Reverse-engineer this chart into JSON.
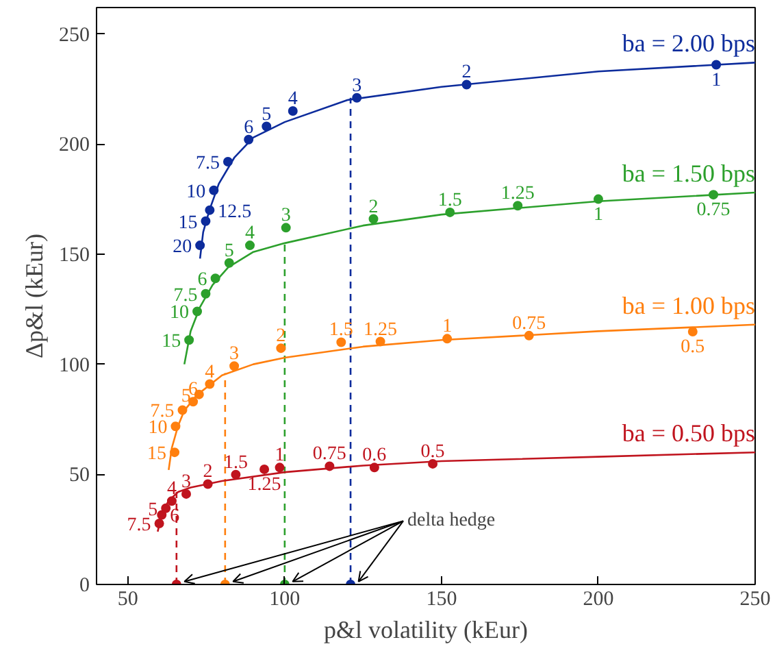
{
  "chart_data": {
    "type": "scatter",
    "xlabel": "p&l volatility (kEur)",
    "ylabel": "Δp&l (kEur)",
    "xlim": [
      40,
      250
    ],
    "ylim": [
      0,
      262
    ],
    "xticks": [
      50,
      100,
      150,
      200,
      250
    ],
    "yticks": [
      0,
      50,
      100,
      150,
      200,
      250
    ],
    "grid": false,
    "legend": false,
    "marker": "circle",
    "annotations": [
      {
        "text": "delta hedge",
        "x": 121,
        "y": 0
      },
      {
        "text": "20",
        "x": 73,
        "y": 154
      },
      {
        "text": "15",
        "x": 74.8,
        "y": 165
      },
      {
        "text": "12.5",
        "x": 76.1,
        "y": 170
      },
      {
        "text": "10",
        "x": 77.4,
        "y": 179
      },
      {
        "text": "7.5",
        "x": 81.9,
        "y": 192
      },
      {
        "text": "6",
        "x": 88.5,
        "y": 202
      },
      {
        "text": "5",
        "x": 94.2,
        "y": 208
      },
      {
        "text": "4",
        "x": 102.6,
        "y": 215
      },
      {
        "text": "3",
        "x": 123,
        "y": 221
      },
      {
        "text": "2",
        "x": 158,
        "y": 227
      },
      {
        "text": "1",
        "x": 237.6,
        "y": 236
      },
      {
        "text": "15",
        "x": 69.5,
        "y": 111
      },
      {
        "text": "10",
        "x": 72.1,
        "y": 124
      },
      {
        "text": "7.5",
        "x": 74.8,
        "y": 132
      },
      {
        "text": "6",
        "x": 77.9,
        "y": 139
      },
      {
        "text": "5",
        "x": 82.3,
        "y": 146
      },
      {
        "text": "4",
        "x": 88.9,
        "y": 154
      },
      {
        "text": "3",
        "x": 100.4,
        "y": 162
      },
      {
        "text": "2",
        "x": 128.3,
        "y": 166
      },
      {
        "text": "1.5",
        "x": 152.7,
        "y": 169
      },
      {
        "text": "1.25",
        "x": 174.3,
        "y": 172
      },
      {
        "text": "1",
        "x": 200,
        "y": 175
      },
      {
        "text": "0.75",
        "x": 236.7,
        "y": 177
      },
      {
        "text": "15",
        "x": 64.9,
        "y": 60
      },
      {
        "text": "10",
        "x": 65.2,
        "y": 71.8
      },
      {
        "text": "7.5",
        "x": 67.4,
        "y": 79.2
      },
      {
        "text": "6",
        "x": 70.8,
        "y": 83
      },
      {
        "text": "5",
        "x": 72.7,
        "y": 86.3
      },
      {
        "text": "4",
        "x": 76.1,
        "y": 91
      },
      {
        "text": "3",
        "x": 83.9,
        "y": 99.2
      },
      {
        "text": "2",
        "x": 98.8,
        "y": 107.3
      },
      {
        "text": "1.5",
        "x": 118,
        "y": 110
      },
      {
        "text": "1.25",
        "x": 130.5,
        "y": 110.3
      },
      {
        "text": "1",
        "x": 151.8,
        "y": 111.6
      },
      {
        "text": "0.75",
        "x": 177.9,
        "y": 113
      },
      {
        "text": "0.5",
        "x": 230.1,
        "y": 114.8
      },
      {
        "text": "7.5",
        "x": 60,
        "y": 27.7
      },
      {
        "text": "6",
        "x": 60.8,
        "y": 31.6
      },
      {
        "text": "5",
        "x": 62.1,
        "y": 34.6
      },
      {
        "text": "4",
        "x": 64,
        "y": 37.9
      },
      {
        "text": "3",
        "x": 68.6,
        "y": 41.1
      },
      {
        "text": "2",
        "x": 75.5,
        "y": 45.6
      },
      {
        "text": "1.5",
        "x": 84.4,
        "y": 49.9
      },
      {
        "text": "1.25",
        "x": 93.5,
        "y": 52.3
      },
      {
        "text": "1",
        "x": 98.4,
        "y": 53.1
      },
      {
        "text": "0.75",
        "x": 114.3,
        "y": 53.7
      },
      {
        "text": "0.6",
        "x": 128.6,
        "y": 53.1
      },
      {
        "text": "0.5",
        "x": 147.2,
        "y": 54.8
      }
    ],
    "series": [
      {
        "type": "line",
        "marker": "none",
        "name": "ba = 2.00 bps",
        "color": "#0d2c9c",
        "x": [
          73,
          74,
          76,
          79,
          84,
          90,
          100,
          120,
          150,
          200,
          250
        ],
        "values": [
          148,
          160,
          170,
          182,
          194,
          203,
          210,
          220,
          226,
          233,
          237
        ]
      },
      {
        "color": "#0d2c9c",
        "x": [
          73,
          74.8,
          76.1,
          77.4,
          81.9,
          88.5,
          94.2,
          102.6,
          123,
          158,
          237.6
        ],
        "values": [
          154,
          165,
          170,
          179,
          192,
          202,
          208,
          215,
          221,
          227,
          236
        ]
      },
      {
        "type": "line",
        "marker": "none",
        "line_style": "dashed",
        "color": "#0d2c9c",
        "x": [
          121,
          121
        ],
        "values": [
          0,
          221
        ]
      },
      {
        "type": "line",
        "marker": "none",
        "name": "ba = 1.50 bps",
        "color": "#2ca02c",
        "x": [
          68,
          70,
          73,
          77,
          82,
          90,
          100,
          125,
          150,
          200,
          250
        ],
        "values": [
          100,
          115,
          126,
          136,
          144,
          151,
          155,
          163,
          168,
          174,
          178
        ]
      },
      {
        "color": "#2ca02c",
        "x": [
          69.5,
          72.1,
          74.8,
          77.9,
          82.3,
          88.9,
          100.4,
          128.3,
          152.7,
          174.3,
          200,
          236.7
        ],
        "values": [
          111,
          124,
          132,
          139,
          146,
          154,
          162,
          166,
          169,
          172,
          175,
          177
        ]
      },
      {
        "type": "line",
        "marker": "none",
        "line_style": "dashed",
        "color": "#2ca02c",
        "x": [
          100,
          100
        ],
        "values": [
          0,
          155
        ]
      },
      {
        "type": "line",
        "marker": "none",
        "name": "ba = 1.00 bps",
        "color": "#ff7f0e",
        "x": [
          63,
          64,
          66,
          68,
          72,
          80,
          90,
          100,
          125,
          150,
          200,
          250
        ],
        "values": [
          52,
          62,
          72,
          79,
          86,
          95,
          100,
          103,
          108,
          111,
          115,
          118
        ]
      },
      {
        "color": "#ff7f0e",
        "x": [
          64.9,
          65.2,
          67.4,
          70.8,
          72.7,
          76.1,
          83.9,
          98.8,
          118,
          130.5,
          151.8,
          177.9,
          230.1
        ],
        "values": [
          60,
          71.8,
          79.2,
          83,
          86.3,
          91,
          99.2,
          107.3,
          110,
          110.3,
          111.6,
          113,
          114.8
        ]
      },
      {
        "type": "line",
        "marker": "none",
        "line_style": "dashed",
        "color": "#ff7f0e",
        "x": [
          81,
          81
        ],
        "values": [
          0,
          96
        ]
      },
      {
        "type": "line",
        "marker": "none",
        "name": "ba = 0.50 bps",
        "color": "#c0141e",
        "x": [
          59.5,
          61,
          63,
          66,
          70,
          80,
          100,
          125,
          150,
          200,
          250
        ],
        "values": [
          24,
          33,
          38,
          42,
          44,
          47,
          51,
          54,
          56,
          58,
          60
        ]
      },
      {
        "color": "#c0141e",
        "x": [
          60,
          60.8,
          62.1,
          64,
          68.6,
          75.5,
          84.4,
          93.5,
          98.4,
          114.3,
          128.6,
          147.2
        ],
        "values": [
          27.7,
          31.6,
          34.6,
          37.9,
          41.1,
          45.6,
          49.9,
          52.3,
          53.1,
          53.7,
          53.1,
          54.8
        ]
      },
      {
        "type": "line",
        "marker": "none",
        "line_style": "dashed",
        "color": "#c0141e",
        "x": [
          65.5,
          65.5
        ],
        "values": [
          0,
          42
        ]
      },
      {
        "colors": [
          "#c0141e",
          "#ff7f0e",
          "#2ca02c",
          "#0d2c9c"
        ],
        "x": [
          65.5,
          81,
          100,
          121
        ],
        "values": [
          0,
          0,
          0,
          0
        ]
      }
    ]
  }
}
